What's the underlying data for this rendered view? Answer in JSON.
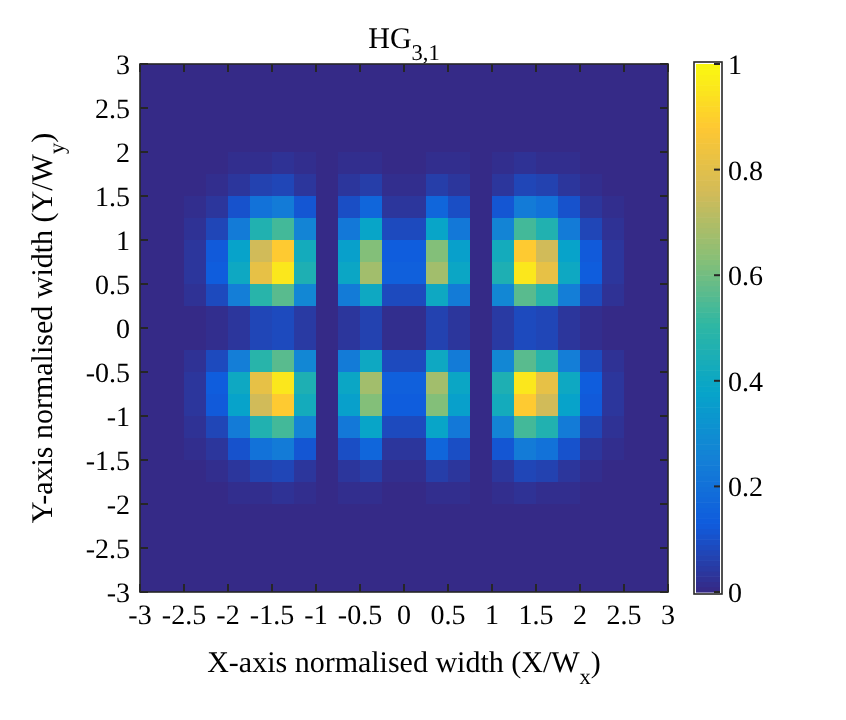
{
  "chart_data": {
    "type": "heatmap",
    "title": "HG$_{3,1}$",
    "xlabel": "X-axis normalised width (X/W$_{x}$)",
    "ylabel": "Y-axis normalised width (Y/W$_{y}$)",
    "x": [
      -2.875,
      -2.625,
      -2.375,
      -2.125,
      -1.875,
      -1.625,
      -1.375,
      -1.125,
      -0.875,
      -0.625,
      -0.375,
      -0.125,
      0.125,
      0.375,
      0.625,
      0.875,
      1.125,
      1.375,
      1.625,
      1.875,
      2.125,
      2.375,
      2.625,
      2.875
    ],
    "y": [
      2.875,
      2.625,
      2.375,
      2.125,
      1.875,
      1.625,
      1.375,
      1.125,
      0.875,
      0.625,
      0.375,
      0.125,
      -0.125,
      -0.375,
      -0.625,
      -0.875,
      -1.125,
      -1.375,
      -1.625,
      -1.875,
      -2.125,
      -2.375,
      -2.625,
      -2.875
    ],
    "xlim": [
      -3,
      3
    ],
    "xticks": [
      -3,
      -2.5,
      -2,
      -1.5,
      -1,
      -0.5,
      0,
      0.5,
      1,
      1.5,
      2,
      2.5,
      3
    ],
    "ylim": [
      -3,
      3
    ],
    "yticks": [
      -3,
      -2.5,
      -2,
      -1.5,
      -1,
      -0.5,
      0,
      0.5,
      1,
      1.5,
      2,
      2.5,
      3
    ],
    "clim": [
      0,
      1
    ],
    "cticks": [
      0,
      0.2,
      0.4,
      0.6,
      0.8,
      1
    ],
    "cells": [
      [
        0,
        0,
        0,
        0,
        0,
        0,
        0,
        0,
        0,
        0,
        0,
        0,
        0,
        0,
        0,
        0,
        0,
        0,
        0,
        0,
        0,
        0,
        0,
        0
      ],
      [
        0,
        0,
        0,
        0,
        0,
        0,
        0,
        0,
        0,
        0,
        0,
        0,
        0,
        0,
        0,
        0,
        0,
        0,
        0,
        0,
        0,
        0,
        0,
        0
      ],
      [
        0,
        0,
        0,
        0,
        0,
        0,
        0,
        0,
        0,
        0,
        0,
        0,
        0,
        0,
        0,
        0,
        0,
        0,
        0,
        0,
        0,
        0,
        0,
        0
      ],
      [
        0,
        0,
        0,
        0,
        0,
        0,
        0,
        0,
        0,
        0,
        0,
        0,
        0,
        0,
        0,
        0,
        0,
        0,
        0,
        0,
        0,
        0,
        0,
        0
      ],
      [
        0,
        0,
        0,
        0,
        0.01,
        0.01,
        0.02,
        0.01,
        0,
        0.01,
        0.01,
        0,
        0,
        0.01,
        0.01,
        0,
        0.01,
        0.02,
        0.01,
        0.01,
        0,
        0,
        0,
        0
      ],
      [
        0,
        0,
        0,
        0.01,
        0.03,
        0.06,
        0.07,
        0.03,
        0,
        0.03,
        0.05,
        0.01,
        0.01,
        0.05,
        0.03,
        0,
        0.03,
        0.07,
        0.06,
        0.03,
        0.01,
        0,
        0,
        0
      ],
      [
        0,
        0,
        0.01,
        0.03,
        0.1,
        0.2,
        0.23,
        0.11,
        0,
        0.09,
        0.16,
        0.03,
        0.03,
        0.16,
        0.09,
        0,
        0.11,
        0.23,
        0.2,
        0.1,
        0.03,
        0.01,
        0,
        0
      ],
      [
        0,
        0,
        0.02,
        0.07,
        0.23,
        0.46,
        0.53,
        0.26,
        0,
        0.22,
        0.38,
        0.08,
        0.08,
        0.38,
        0.22,
        0,
        0.26,
        0.53,
        0.46,
        0.23,
        0.07,
        0.02,
        0,
        0
      ],
      [
        0,
        0,
        0.03,
        0.12,
        0.37,
        0.75,
        0.88,
        0.42,
        0,
        0.36,
        0.62,
        0.13,
        0.13,
        0.62,
        0.36,
        0,
        0.42,
        0.88,
        0.75,
        0.37,
        0.12,
        0.03,
        0,
        0
      ],
      [
        0,
        0,
        0.03,
        0.13,
        0.4,
        0.81,
        0.95,
        0.45,
        0,
        0.39,
        0.67,
        0.14,
        0.14,
        0.67,
        0.39,
        0,
        0.45,
        0.95,
        0.81,
        0.4,
        0.13,
        0.03,
        0,
        0
      ],
      [
        0,
        0,
        0.02,
        0.08,
        0.24,
        0.48,
        0.56,
        0.27,
        0,
        0.23,
        0.4,
        0.08,
        0.08,
        0.4,
        0.23,
        0,
        0.27,
        0.56,
        0.48,
        0.24,
        0.08,
        0.02,
        0,
        0
      ],
      [
        0,
        0,
        0,
        0.01,
        0.03,
        0.07,
        0.08,
        0.04,
        0,
        0.03,
        0.06,
        0.01,
        0.01,
        0.06,
        0.03,
        0,
        0.04,
        0.08,
        0.07,
        0.03,
        0.01,
        0,
        0,
        0
      ],
      [
        0,
        0,
        0,
        0.01,
        0.03,
        0.07,
        0.08,
        0.04,
        0,
        0.03,
        0.06,
        0.01,
        0.01,
        0.06,
        0.03,
        0,
        0.04,
        0.08,
        0.07,
        0.03,
        0.01,
        0,
        0,
        0
      ],
      [
        0,
        0,
        0.02,
        0.08,
        0.24,
        0.48,
        0.56,
        0.27,
        0,
        0.23,
        0.4,
        0.08,
        0.08,
        0.4,
        0.23,
        0,
        0.27,
        0.56,
        0.48,
        0.24,
        0.08,
        0.02,
        0,
        0
      ],
      [
        0,
        0,
        0.03,
        0.13,
        0.4,
        0.81,
        0.95,
        0.45,
        0,
        0.39,
        0.67,
        0.14,
        0.14,
        0.67,
        0.39,
        0,
        0.45,
        0.95,
        0.81,
        0.4,
        0.13,
        0.03,
        0,
        0
      ],
      [
        0,
        0,
        0.03,
        0.12,
        0.37,
        0.75,
        0.88,
        0.42,
        0,
        0.36,
        0.62,
        0.13,
        0.13,
        0.62,
        0.36,
        0,
        0.42,
        0.88,
        0.75,
        0.37,
        0.12,
        0.03,
        0,
        0
      ],
      [
        0,
        0,
        0.02,
        0.07,
        0.23,
        0.46,
        0.53,
        0.26,
        0,
        0.22,
        0.38,
        0.08,
        0.08,
        0.38,
        0.22,
        0,
        0.26,
        0.53,
        0.46,
        0.23,
        0.07,
        0.02,
        0,
        0
      ],
      [
        0,
        0,
        0.01,
        0.03,
        0.1,
        0.2,
        0.23,
        0.11,
        0,
        0.09,
        0.16,
        0.03,
        0.03,
        0.16,
        0.09,
        0,
        0.11,
        0.23,
        0.2,
        0.1,
        0.03,
        0.01,
        0,
        0
      ],
      [
        0,
        0,
        0,
        0.01,
        0.03,
        0.06,
        0.07,
        0.03,
        0,
        0.03,
        0.05,
        0.01,
        0.01,
        0.05,
        0.03,
        0,
        0.03,
        0.07,
        0.06,
        0.03,
        0.01,
        0,
        0,
        0
      ],
      [
        0,
        0,
        0,
        0,
        0.01,
        0.01,
        0.02,
        0.01,
        0,
        0.01,
        0.01,
        0,
        0,
        0.01,
        0.01,
        0,
        0.01,
        0.02,
        0.01,
        0.01,
        0,
        0,
        0,
        0
      ],
      [
        0,
        0,
        0,
        0,
        0,
        0,
        0,
        0,
        0,
        0,
        0,
        0,
        0,
        0,
        0,
        0,
        0,
        0,
        0,
        0,
        0,
        0,
        0,
        0
      ],
      [
        0,
        0,
        0,
        0,
        0,
        0,
        0,
        0,
        0,
        0,
        0,
        0,
        0,
        0,
        0,
        0,
        0,
        0,
        0,
        0,
        0,
        0,
        0,
        0
      ],
      [
        0,
        0,
        0,
        0,
        0,
        0,
        0,
        0,
        0,
        0,
        0,
        0,
        0,
        0,
        0,
        0,
        0,
        0,
        0,
        0,
        0,
        0,
        0,
        0
      ],
      [
        0,
        0,
        0,
        0,
        0,
        0,
        0,
        0,
        0,
        0,
        0,
        0,
        0,
        0,
        0,
        0,
        0,
        0,
        0,
        0,
        0,
        0,
        0,
        0
      ]
    ]
  }
}
